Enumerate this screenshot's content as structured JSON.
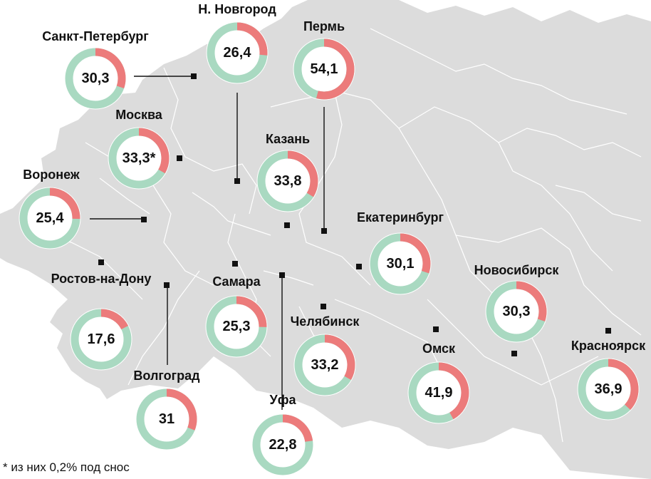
{
  "map": {
    "land_color": "#dcdcdc",
    "border_color": "#ffffff",
    "ring_green": "#a9d9c1",
    "ring_red": "#ec7b7b",
    "marker_color": "#111111"
  },
  "cities": [
    {
      "id": "saint-petersburg",
      "name": "Санкт-Петербург",
      "value": "30,3",
      "share": 30.3
    },
    {
      "id": "nizhny-novgorod",
      "name": "Н. Новгород",
      "value": "26,4",
      "share": 26.4
    },
    {
      "id": "perm",
      "name": "Пермь",
      "value": "54,1",
      "share": 54.1
    },
    {
      "id": "moscow",
      "name": "Москва",
      "value": "33,3*",
      "share": 33.3
    },
    {
      "id": "kazan",
      "name": "Казань",
      "value": "33,8",
      "share": 33.8
    },
    {
      "id": "voronezh",
      "name": "Воронеж",
      "value": "25,4",
      "share": 25.4
    },
    {
      "id": "yekaterinburg",
      "name": "Екатеринбург",
      "value": "30,1",
      "share": 30.1
    },
    {
      "id": "rostov",
      "name": "Ростов-на-Дону",
      "value": "17,6",
      "share": 17.6
    },
    {
      "id": "samara",
      "name": "Самара",
      "value": "25,3",
      "share": 25.3
    },
    {
      "id": "chelyabinsk",
      "name": "Челябинск",
      "value": "33,2",
      "share": 33.2
    },
    {
      "id": "novosibirsk",
      "name": "Новосибирск",
      "value": "30,3",
      "share": 30.3
    },
    {
      "id": "omsk",
      "name": "Омск",
      "value": "41,9",
      "share": 41.9
    },
    {
      "id": "krasnoyarsk",
      "name": "Красноярск",
      "value": "36,9",
      "share": 36.9
    },
    {
      "id": "volgograd",
      "name": "Волгоград",
      "value": "31",
      "share": 31
    },
    {
      "id": "ufa",
      "name": "Уфа",
      "value": "22,8",
      "share": 22.8
    }
  ],
  "footnote": "* из них 0,2% под снос"
}
